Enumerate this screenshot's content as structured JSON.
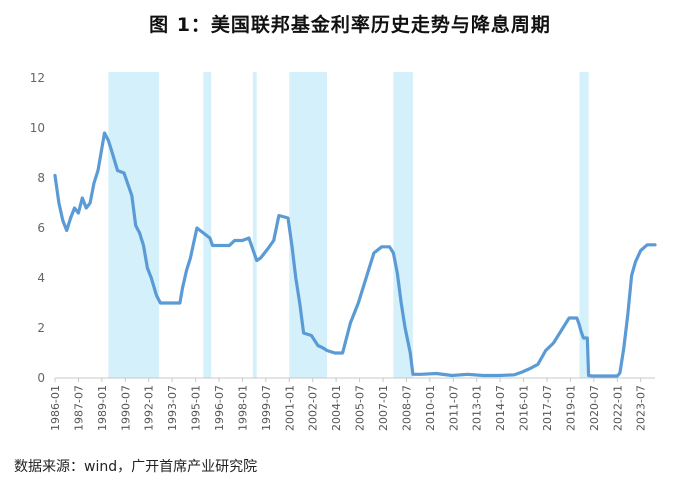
{
  "title": "图 1：美国联邦基金利率历史走势与降息周期",
  "source": "数据来源：wind，广开首席产业研究院",
  "colors": {
    "line": "#5b9bd5",
    "band": "#d4f0fa",
    "axis": "#c8c8c8"
  },
  "chart_data": {
    "type": "line",
    "title": "图 1：美国联邦基金利率历史走势与降息周期",
    "xlabel": "",
    "ylabel": "",
    "ylim": [
      0,
      12
    ],
    "yticks": [
      0,
      2,
      4,
      6,
      8,
      10,
      12
    ],
    "grid": false,
    "legend": "none",
    "xrange": [
      "1986-01",
      "2024-06"
    ],
    "x_tick_labels": [
      "1986-01",
      "1987-07",
      "1989-01",
      "1990-07",
      "1992-01",
      "1993-07",
      "1995-01",
      "1996-07",
      "1998-01",
      "1999-07",
      "2001-01",
      "2002-07",
      "2004-01",
      "2005-07",
      "2007-01",
      "2008-07",
      "2010-01",
      "2011-07",
      "2013-01",
      "2014-07",
      "2016-01",
      "2017-07",
      "2019-01",
      "2020-07",
      "2022-01",
      "2023-07"
    ],
    "shaded_periods": [
      [
        "1989-06",
        "1992-09"
      ],
      [
        "1995-07",
        "1996-01"
      ],
      [
        "1998-09",
        "1998-12"
      ],
      [
        "2001-01",
        "2003-06"
      ],
      [
        "2007-09",
        "2008-12"
      ],
      [
        "2019-08",
        "2020-03"
      ]
    ],
    "series": [
      {
        "x": [
          "1986-01",
          "1986-04",
          "1986-07",
          "1986-10",
          "1987-01",
          "1987-04",
          "1987-07",
          "1987-10",
          "1988-01",
          "1988-04",
          "1988-07",
          "1988-10",
          "1989-03",
          "1989-06",
          "1989-09",
          "1990-01",
          "1990-06",
          "1990-12",
          "1991-03",
          "1991-06",
          "1991-09",
          "1991-12",
          "1992-03",
          "1992-07",
          "1992-10",
          "1993-06",
          "1994-01",
          "1994-03",
          "1994-06",
          "1994-09",
          "1995-02",
          "1995-07",
          "1995-12",
          "1996-02",
          "1996-07",
          "1997-03",
          "1997-07",
          "1998-01",
          "1998-06",
          "1998-10",
          "1998-12",
          "1999-03",
          "1999-06",
          "1999-09",
          "2000-01",
          "2000-05",
          "2000-12",
          "2001-03",
          "2001-06",
          "2001-09",
          "2001-12",
          "2002-06",
          "2002-11",
          "2003-03",
          "2003-06",
          "2003-12",
          "2004-06",
          "2004-12",
          "2005-06",
          "2005-12",
          "2006-06",
          "2006-12",
          "2007-06",
          "2007-09",
          "2007-12",
          "2008-03",
          "2008-06",
          "2008-10",
          "2008-12",
          "2009-06",
          "2010-06",
          "2011-06",
          "2012-06",
          "2013-06",
          "2014-06",
          "2015-06",
          "2015-12",
          "2016-06",
          "2016-12",
          "2017-06",
          "2017-12",
          "2018-06",
          "2018-12",
          "2019-06",
          "2019-08",
          "2019-09",
          "2019-11",
          "2020-02",
          "2020-03",
          "2020-06",
          "2021-06",
          "2022-01",
          "2022-03",
          "2022-06",
          "2022-09",
          "2022-12",
          "2023-03",
          "2023-07",
          "2023-12",
          "2024-06"
        ],
        "values": [
          8.1,
          7.0,
          6.3,
          5.9,
          6.4,
          6.8,
          6.6,
          7.2,
          6.8,
          7.0,
          7.8,
          8.3,
          9.8,
          9.5,
          9.0,
          8.3,
          8.2,
          7.3,
          6.1,
          5.8,
          5.3,
          4.4,
          4.0,
          3.3,
          3.0,
          3.0,
          3.0,
          3.6,
          4.3,
          4.8,
          6.0,
          5.8,
          5.6,
          5.3,
          5.3,
          5.3,
          5.5,
          5.5,
          5.6,
          5.0,
          4.7,
          4.8,
          5.0,
          5.2,
          5.5,
          6.5,
          6.4,
          5.3,
          4.0,
          3.0,
          1.8,
          1.7,
          1.3,
          1.2,
          1.1,
          1.0,
          1.0,
          2.2,
          3.0,
          4.0,
          5.0,
          5.25,
          5.25,
          5.0,
          4.2,
          3.0,
          2.0,
          1.0,
          0.15,
          0.15,
          0.18,
          0.1,
          0.15,
          0.1,
          0.1,
          0.13,
          0.24,
          0.38,
          0.55,
          1.1,
          1.4,
          1.9,
          2.4,
          2.4,
          2.1,
          1.9,
          1.6,
          1.6,
          0.1,
          0.08,
          0.08,
          0.08,
          0.2,
          1.2,
          2.5,
          4.1,
          4.65,
          5.1,
          5.33,
          5.33
        ]
      }
    ]
  }
}
